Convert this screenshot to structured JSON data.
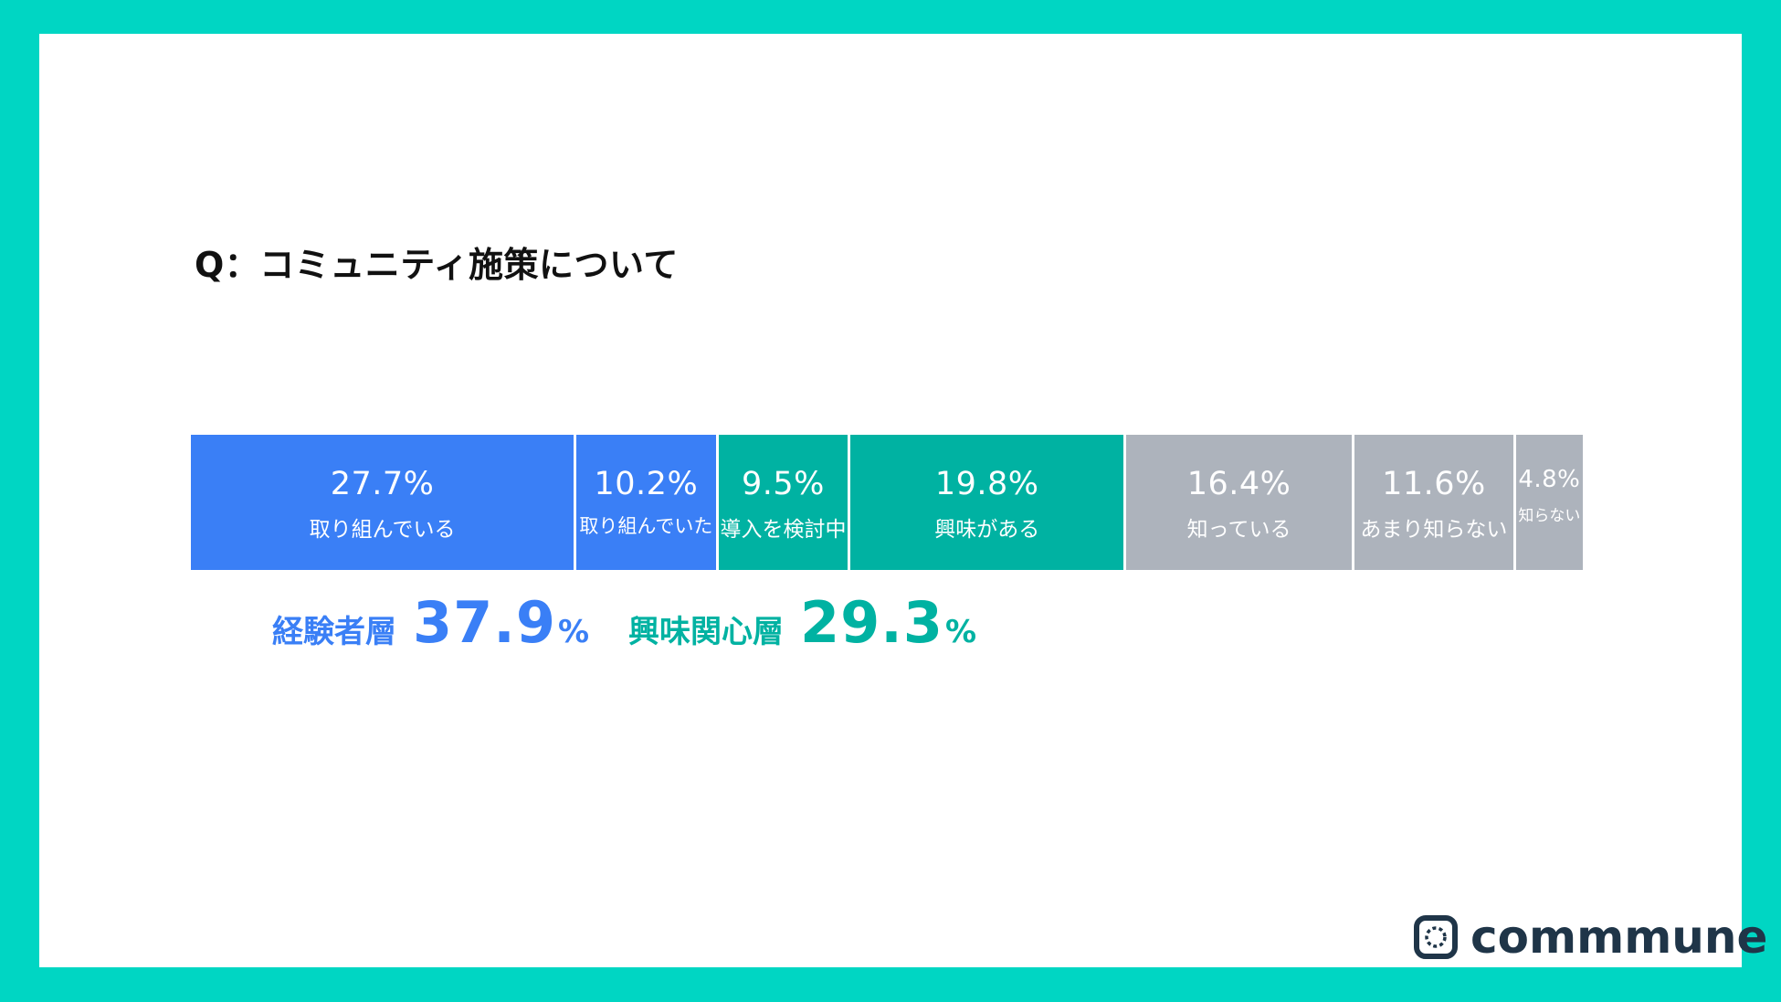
{
  "question": "Q：コミュニティ施策について",
  "colors": {
    "experienced": "#3a7ff6",
    "interested": "#00b2a2",
    "other": "#adb3bc"
  },
  "chart_data": {
    "type": "bar",
    "orientation": "horizontal-stacked",
    "total": 100,
    "segments": [
      {
        "value_label": "27.7%",
        "value": 27.7,
        "label": "取り組んでいる",
        "group": "experienced"
      },
      {
        "value_label": "10.2%",
        "value": 10.2,
        "label": "取り組んでいた",
        "group": "experienced"
      },
      {
        "value_label": "9.5%",
        "value": 9.5,
        "label": "導入を検討中",
        "group": "interested"
      },
      {
        "value_label": "19.8%",
        "value": 19.8,
        "label": "興味がある",
        "group": "interested"
      },
      {
        "value_label": "16.4%",
        "value": 16.4,
        "label": "知っている",
        "group": "other"
      },
      {
        "value_label": "11.6%",
        "value": 11.6,
        "label": "あまり知らない",
        "group": "other"
      },
      {
        "value_label": "4.8%",
        "value": 4.8,
        "label": "知らない",
        "group": "other"
      }
    ],
    "groups": [
      {
        "key": "experienced",
        "name": "経験者層",
        "value": "37.9",
        "unit": "%"
      },
      {
        "key": "interested",
        "name": "興味関心層",
        "value": "29.3",
        "unit": "%"
      }
    ]
  },
  "logo": {
    "icon": "commune-logo-icon",
    "text": "commmune"
  }
}
